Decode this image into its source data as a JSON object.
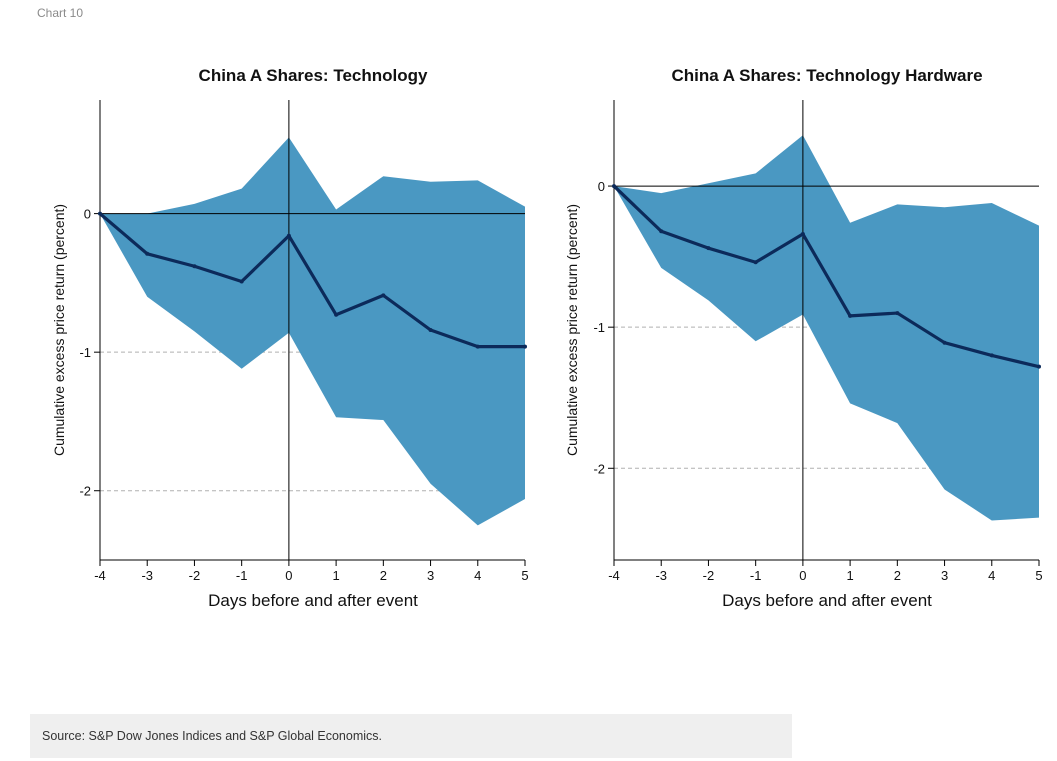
{
  "header": {
    "chart_label": "Chart 10"
  },
  "source": {
    "text": "Source: S&P Dow Jones Indices and S&P Global Economics."
  },
  "colors": {
    "band": "#4a98c2",
    "line": "#0c2a5a",
    "axis": "#000000",
    "grid": "#b0b0b0"
  },
  "chart_data": [
    {
      "type": "area",
      "title": "China A Shares: Technology",
      "xlabel": "Days before and after event",
      "ylabel": "Cumulative excess price return (percent)",
      "x": [
        -4,
        -3,
        -2,
        -1,
        0,
        1,
        2,
        3,
        4,
        5
      ],
      "xlim": [
        -4,
        5
      ],
      "ylim": [
        -2.5,
        0.82
      ],
      "yticks": [
        0,
        -1,
        -2
      ],
      "grid": "dashed horizontal at -1 and -2",
      "series": [
        {
          "role": "upper_bound",
          "values": [
            0,
            0,
            0.07,
            0.18,
            0.55,
            0.03,
            0.27,
            0.23,
            0.24,
            0.05
          ]
        },
        {
          "role": "lower_bound",
          "values": [
            0,
            -0.6,
            -0.85,
            -1.12,
            -0.86,
            -1.47,
            -1.49,
            -1.95,
            -2.25,
            -2.06
          ]
        },
        {
          "role": "mean",
          "values": [
            0,
            -0.29,
            -0.38,
            -0.49,
            -0.16,
            -0.73,
            -0.59,
            -0.84,
            -0.96,
            -0.96
          ]
        }
      ]
    },
    {
      "type": "area",
      "title": "China A Shares: Technology Hardware",
      "xlabel": "Days before and after event",
      "ylabel": "Cumulative excess price return (percent)",
      "x": [
        -4,
        -3,
        -2,
        -1,
        0,
        1,
        2,
        3,
        4,
        5
      ],
      "xlim": [
        -4,
        5
      ],
      "ylim": [
        -2.65,
        0.61
      ],
      "yticks": [
        0,
        -1,
        -2
      ],
      "grid": "dashed horizontal at -1 and -2",
      "series": [
        {
          "role": "upper_bound",
          "values": [
            0,
            -0.05,
            0.02,
            0.09,
            0.36,
            -0.26,
            -0.13,
            -0.15,
            -0.12,
            -0.28
          ]
        },
        {
          "role": "lower_bound",
          "values": [
            0,
            -0.58,
            -0.81,
            -1.1,
            -0.91,
            -1.54,
            -1.68,
            -2.15,
            -2.37,
            -2.35
          ]
        },
        {
          "role": "mean",
          "values": [
            0,
            -0.32,
            -0.44,
            -0.54,
            -0.34,
            -0.92,
            -0.9,
            -1.11,
            -1.2,
            -1.28
          ]
        }
      ]
    }
  ]
}
